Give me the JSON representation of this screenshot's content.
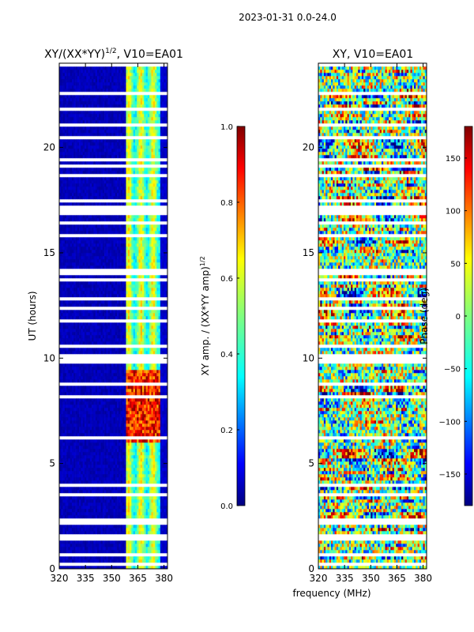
{
  "suptitle": "2023-01-31 0.0-24.0",
  "xlabel": "frequency (MHz)",
  "chart_data": [
    {
      "type": "heatmap",
      "title_main": "XY/(XX*YY)",
      "title_sup": "1/2",
      "title_tail": ", V10=EA01",
      "xlabel": "frequency (MHz)",
      "ylabel": "UT (hours)",
      "xlim": [
        320,
        382
      ],
      "ylim": [
        0,
        24
      ],
      "xticks": [
        320,
        335,
        350,
        365,
        380
      ],
      "yticks": [
        0,
        5,
        10,
        15,
        20
      ],
      "colorbar": {
        "label_main": "XY amp. / (XX*YY amp)",
        "label_sup": "1/2",
        "range": [
          0.0,
          1.0
        ],
        "ticks": [
          0.0,
          0.2,
          0.4,
          0.6,
          0.8,
          1.0
        ],
        "tick_labels": [
          "0.0",
          "0.2",
          "0.4",
          "0.6",
          "0.8",
          "1.0"
        ],
        "colormap": "jet"
      },
      "notes": "Mostly low amplitude (~0.05) at 320-358 MHz; channels ~358-378 MHz show 0.3-0.6 amplitude, rising to ~0.8-1.0 between UT 6 and 9.5 h; horizontal white gaps mark flagged data"
    },
    {
      "type": "heatmap",
      "title": "XY, V10=EA01",
      "xlim": [
        320,
        382
      ],
      "ylim": [
        0,
        24
      ],
      "xticks": [
        320,
        335,
        350,
        365,
        380
      ],
      "yticks": [
        0,
        5,
        10,
        15,
        20
      ],
      "colorbar": {
        "label": "Phase (deg)",
        "range": [
          -180,
          180
        ],
        "ticks": [
          -150,
          -100,
          -50,
          0,
          50,
          100,
          150
        ],
        "tick_labels": [
          "−150",
          "−100",
          "−50",
          "0",
          "50",
          "100",
          "150"
        ],
        "colormap": "jet"
      },
      "notes": "Phase varies widely across the full range (-180 to 180 deg) with horizontal banding and flagged white gaps"
    }
  ],
  "colors": {
    "jet": [
      "#00007f",
      "#0000ff",
      "#007fff",
      "#00ffff",
      "#7fff7f",
      "#ffff00",
      "#ff7f00",
      "#ff0000",
      "#7f0000"
    ],
    "background": "#ffffff",
    "flag_gap": "#ffffff"
  }
}
